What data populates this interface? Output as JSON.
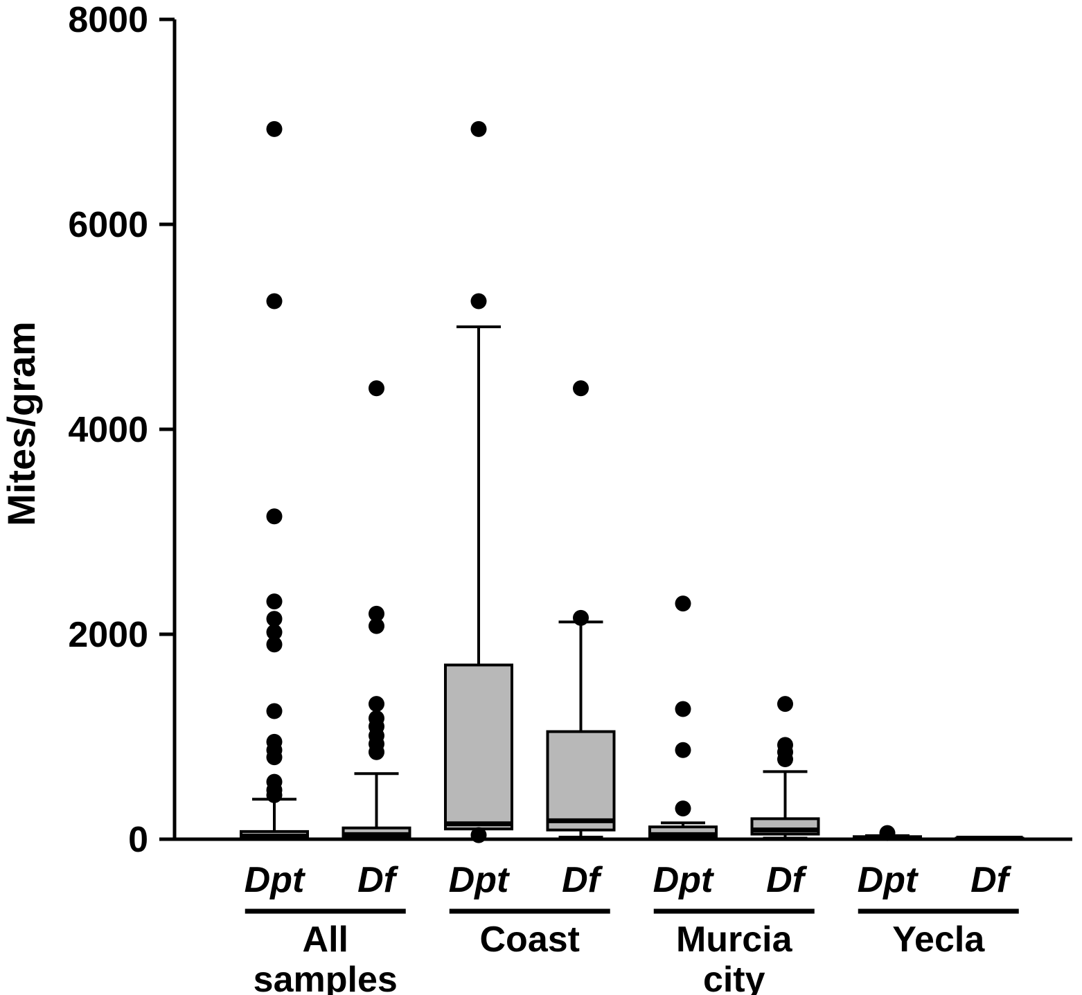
{
  "figure": {
    "ylabel": "Mites/gram"
  },
  "chart_data": {
    "type": "boxplot",
    "title": "",
    "xlabel": "",
    "ylabel": "Mites/gram",
    "ylim": [
      0,
      8000
    ],
    "yticks": [
      0,
      2000,
      4000,
      6000,
      8000
    ],
    "grid": false,
    "legend": "none",
    "box_fill": "#b8b8b8",
    "box_stroke": "#000000",
    "outlier_color": "#000000",
    "groups": [
      {
        "label_lines": [
          "All",
          "samples"
        ],
        "boxes": [
          {
            "label": "Dpt",
            "whisker_low": 0,
            "q1": 5,
            "median": 30,
            "q3": 75,
            "whisker_high": 390,
            "outliers": [
              430,
              480,
              560,
              800,
              870,
              950,
              1250,
              1900,
              2020,
              2150,
              2320,
              3150,
              5250,
              6930
            ]
          },
          {
            "label": "Df",
            "whisker_low": 0,
            "q1": 10,
            "median": 45,
            "q3": 110,
            "whisker_high": 640,
            "outliers": [
              850,
              930,
              1010,
              1100,
              1180,
              1320,
              2080,
              2200,
              4400
            ]
          }
        ]
      },
      {
        "label_lines": [
          "Coast"
        ],
        "boxes": [
          {
            "label": "Dpt",
            "whisker_low": 0,
            "q1": 100,
            "median": 150,
            "q3": 1700,
            "whisker_high": 5000,
            "outliers": [
              40,
              5250,
              6930
            ]
          },
          {
            "label": "Df",
            "whisker_low": 20,
            "q1": 90,
            "median": 180,
            "q3": 1050,
            "whisker_high": 2120,
            "outliers": [
              2160,
              4400
            ]
          }
        ]
      },
      {
        "label_lines": [
          "Murcia",
          "city"
        ],
        "boxes": [
          {
            "label": "Dpt",
            "whisker_low": 0,
            "q1": 10,
            "median": 45,
            "q3": 120,
            "whisker_high": 160,
            "outliers": [
              300,
              870,
              1270,
              2300
            ]
          },
          {
            "label": "Df",
            "whisker_low": 10,
            "q1": 50,
            "median": 90,
            "q3": 200,
            "whisker_high": 660,
            "outliers": [
              780,
              850,
              920,
              1320
            ]
          }
        ]
      },
      {
        "label_lines": [
          "Yecla"
        ],
        "boxes": [
          {
            "label": "Dpt",
            "whisker_low": 0,
            "q1": 0,
            "median": 10,
            "q3": 25,
            "whisker_high": 35,
            "outliers": [
              60
            ]
          },
          {
            "label": "Df",
            "whisker_low": 10,
            "q1": 10,
            "median": 10,
            "q3": 10,
            "whisker_high": 10,
            "outliers": []
          }
        ]
      }
    ]
  }
}
